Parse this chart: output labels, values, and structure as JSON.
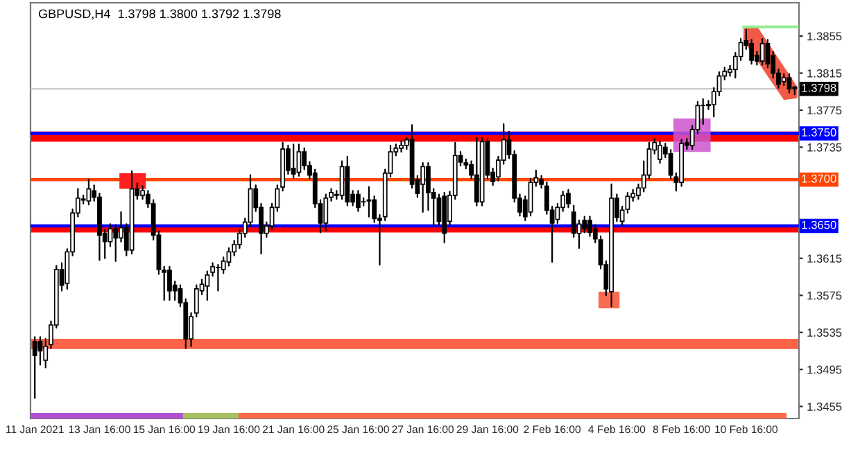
{
  "chart_data": {
    "type": "candlestick",
    "title": "GBPUSD,H4  1.3798 1.3800 1.3792 1.3798",
    "categories": [
      "11 Jan 2021",
      null,
      null,
      null,
      null,
      null,
      null,
      null,
      null,
      null,
      null,
      null,
      "13 Jan 16:00",
      null,
      null,
      null,
      null,
      null,
      null,
      null,
      null,
      null,
      null,
      null,
      "15 Jan 16:00",
      null,
      null,
      null,
      null,
      null,
      null,
      null,
      null,
      null,
      null,
      null,
      "19 Jan 16:00",
      null,
      null,
      null,
      null,
      null,
      null,
      null,
      null,
      null,
      null,
      null,
      "21 Jan 16:00",
      null,
      null,
      null,
      null,
      null,
      null,
      null,
      null,
      null,
      null,
      null,
      "25 Jan 16:00",
      null,
      null,
      null,
      null,
      null,
      null,
      null,
      null,
      null,
      null,
      null,
      "27 Jan 16:00",
      null,
      null,
      null,
      null,
      null,
      null,
      null,
      null,
      null,
      null,
      null,
      "29 Jan 16:00",
      null,
      null,
      null,
      null,
      null,
      null,
      null,
      null,
      null,
      null,
      null,
      "2 Feb 16:00",
      null,
      null,
      null,
      null,
      null,
      null,
      null,
      null,
      null,
      null,
      null,
      "4 Feb 16:00",
      null,
      null,
      null,
      null,
      null,
      null,
      null,
      null,
      null,
      null,
      null,
      "8 Feb 16:00",
      null,
      null,
      null,
      null,
      null,
      null,
      null,
      null,
      null,
      null,
      null,
      "10 Feb 16:00",
      null,
      null,
      null,
      null,
      null,
      null,
      null,
      null,
      null
    ],
    "ohlc": [
      [
        1.3525,
        1.353,
        1.3464,
        1.351
      ],
      [
        1.3525,
        1.353,
        1.35,
        1.3515
      ],
      [
        1.3505,
        1.3528,
        1.3497,
        1.352
      ],
      [
        1.3522,
        1.3547,
        1.3518,
        1.3543
      ],
      [
        1.3543,
        1.3607,
        1.354,
        1.3603
      ],
      [
        1.3603,
        1.361,
        1.358,
        1.3586
      ],
      [
        1.3588,
        1.3625,
        1.3582,
        1.3622
      ],
      [
        1.3622,
        1.3668,
        1.3618,
        1.3664
      ],
      [
        1.3664,
        1.369,
        1.366,
        1.368
      ],
      [
        1.3679,
        1.3683,
        1.3674,
        1.3678
      ],
      [
        1.3677,
        1.37,
        1.3673,
        1.369
      ],
      [
        1.3688,
        1.3694,
        1.3677,
        1.3681
      ],
      [
        1.3681,
        1.3685,
        1.3613,
        1.364
      ],
      [
        1.3642,
        1.3646,
        1.3615,
        1.3633
      ],
      [
        1.3633,
        1.3652,
        1.3628,
        1.3647
      ],
      [
        1.3647,
        1.3651,
        1.3612,
        1.3637
      ],
      [
        1.3637,
        1.3665,
        1.3633,
        1.3648
      ],
      [
        1.3648,
        1.3652,
        1.3618,
        1.3624
      ],
      [
        1.3624,
        1.3709,
        1.362,
        1.369
      ],
      [
        1.369,
        1.3696,
        1.3679,
        1.3683
      ],
      [
        1.3683,
        1.3693,
        1.3679,
        1.3688
      ],
      [
        1.3684,
        1.3688,
        1.367,
        1.3674
      ],
      [
        1.3674,
        1.3678,
        1.3635,
        1.364
      ],
      [
        1.364,
        1.3644,
        1.3598,
        1.3603
      ],
      [
        1.3602,
        1.3606,
        1.357,
        1.36
      ],
      [
        1.3602,
        1.3606,
        1.357,
        1.358
      ],
      [
        1.3586,
        1.359,
        1.357,
        1.358
      ],
      [
        1.3582,
        1.3586,
        1.3563,
        1.3567
      ],
      [
        1.3567,
        1.3571,
        1.3518,
        1.3528
      ],
      [
        1.3528,
        1.3556,
        1.352,
        1.3552
      ],
      [
        1.3556,
        1.3586,
        1.3552,
        1.3582
      ],
      [
        1.358,
        1.3592,
        1.3576,
        1.3587
      ],
      [
        1.3585,
        1.3601,
        1.357,
        1.3597
      ],
      [
        1.36,
        1.361,
        1.3596,
        1.3606
      ],
      [
        1.3605,
        1.3608,
        1.358,
        1.3605
      ],
      [
        1.3603,
        1.3616,
        1.3599,
        1.3612
      ],
      [
        1.3611,
        1.3626,
        1.3607,
        1.3622
      ],
      [
        1.3622,
        1.3634,
        1.3618,
        1.363
      ],
      [
        1.363,
        1.3646,
        1.3626,
        1.3642
      ],
      [
        1.3642,
        1.3658,
        1.3638,
        1.3654
      ],
      [
        1.3654,
        1.3705,
        1.365,
        1.369
      ],
      [
        1.369,
        1.3694,
        1.3666,
        1.367
      ],
      [
        1.367,
        1.3674,
        1.362,
        1.3642
      ],
      [
        1.3642,
        1.3654,
        1.3638,
        1.365
      ],
      [
        1.365,
        1.3674,
        1.3646,
        1.367
      ],
      [
        1.367,
        1.3694,
        1.3666,
        1.369
      ],
      [
        1.3692,
        1.374,
        1.3688,
        1.3733
      ],
      [
        1.3733,
        1.3737,
        1.3706,
        1.371
      ],
      [
        1.3712,
        1.3738,
        1.3702,
        1.3706
      ],
      [
        1.3708,
        1.3738,
        1.3704,
        1.373
      ],
      [
        1.373,
        1.3734,
        1.3711,
        1.3715
      ],
      [
        1.3715,
        1.3719,
        1.3701,
        1.3705
      ],
      [
        1.3707,
        1.3711,
        1.367,
        1.3674
      ],
      [
        1.3674,
        1.3678,
        1.3643,
        1.3653
      ],
      [
        1.3653,
        1.3684,
        1.3645,
        1.368
      ],
      [
        1.3681,
        1.369,
        1.3677,
        1.3686
      ],
      [
        1.3684,
        1.3688,
        1.3679,
        1.3683
      ],
      [
        1.3683,
        1.372,
        1.3679,
        1.3714
      ],
      [
        1.3714,
        1.3725,
        1.3672,
        1.3676
      ],
      [
        1.3684,
        1.3688,
        1.3672,
        1.3676
      ],
      [
        1.3684,
        1.3688,
        1.3666,
        1.367
      ],
      [
        1.3676,
        1.368,
        1.3672,
        1.3676
      ],
      [
        1.3677,
        1.3692,
        1.366,
        1.3678
      ],
      [
        1.3678,
        1.3682,
        1.3654,
        1.3658
      ],
      [
        1.3658,
        1.3662,
        1.3608,
        1.3656
      ],
      [
        1.366,
        1.3711,
        1.3656,
        1.3707
      ],
      [
        1.3707,
        1.3737,
        1.3703,
        1.373
      ],
      [
        1.373,
        1.3738,
        1.3726,
        1.3734
      ],
      [
        1.3734,
        1.3742,
        1.373,
        1.3737
      ],
      [
        1.3737,
        1.3745,
        1.3733,
        1.3743
      ],
      [
        1.3743,
        1.3759,
        1.3691,
        1.3695
      ],
      [
        1.37,
        1.3704,
        1.3681,
        1.3685
      ],
      [
        1.3695,
        1.3718,
        1.3665,
        1.3714
      ],
      [
        1.3714,
        1.3718,
        1.3667,
        1.3686
      ],
      [
        1.3686,
        1.369,
        1.365,
        1.368
      ],
      [
        1.368,
        1.3684,
        1.3651,
        1.3655
      ],
      [
        1.3682,
        1.3686,
        1.3632,
        1.3642
      ],
      [
        1.3655,
        1.3687,
        1.3651,
        1.3683
      ],
      [
        1.3683,
        1.374,
        1.3679,
        1.3726
      ],
      [
        1.3726,
        1.373,
        1.3715,
        1.3719
      ],
      [
        1.3718,
        1.3722,
        1.3712,
        1.3716
      ],
      [
        1.3716,
        1.372,
        1.3701,
        1.3705
      ],
      [
        1.3705,
        1.3745,
        1.3672,
        1.3676
      ],
      [
        1.3676,
        1.3745,
        1.3672,
        1.3741
      ],
      [
        1.3741,
        1.3744,
        1.3701,
        1.3705
      ],
      [
        1.3708,
        1.3712,
        1.3694,
        1.3698
      ],
      [
        1.3703,
        1.3725,
        1.3699,
        1.3721
      ],
      [
        1.3721,
        1.376,
        1.3717,
        1.3743
      ],
      [
        1.3743,
        1.3752,
        1.3723,
        1.3727
      ],
      [
        1.3727,
        1.3731,
        1.3676,
        1.368
      ],
      [
        1.368,
        1.3684,
        1.3661,
        1.3665
      ],
      [
        1.3678,
        1.3682,
        1.3656,
        1.366
      ],
      [
        1.3665,
        1.3701,
        1.3661,
        1.3697
      ],
      [
        1.3697,
        1.371,
        1.3693,
        1.3702
      ],
      [
        1.37,
        1.3704,
        1.3691,
        1.3695
      ],
      [
        1.3693,
        1.3697,
        1.3663,
        1.3667
      ],
      [
        1.3667,
        1.3671,
        1.3611,
        1.3653
      ],
      [
        1.3657,
        1.3674,
        1.3653,
        1.367
      ],
      [
        1.367,
        1.3687,
        1.3666,
        1.3683
      ],
      [
        1.3685,
        1.3689,
        1.367,
        1.3674
      ],
      [
        1.3665,
        1.3672,
        1.3638,
        1.3642
      ],
      [
        1.3642,
        1.3656,
        1.3626,
        1.3652
      ],
      [
        1.3656,
        1.366,
        1.3643,
        1.3647
      ],
      [
        1.3656,
        1.366,
        1.3639,
        1.3643
      ],
      [
        1.3647,
        1.3651,
        1.3632,
        1.3636
      ],
      [
        1.3635,
        1.3639,
        1.3604,
        1.3608
      ],
      [
        1.3608,
        1.3612,
        1.3575,
        1.3582
      ],
      [
        1.3579,
        1.3695,
        1.3563,
        1.368
      ],
      [
        1.368,
        1.3684,
        1.3655,
        1.3659
      ],
      [
        1.3655,
        1.3671,
        1.3651,
        1.3667
      ],
      [
        1.3668,
        1.3686,
        1.3664,
        1.3682
      ],
      [
        1.3681,
        1.3689,
        1.3677,
        1.3685
      ],
      [
        1.3683,
        1.3695,
        1.3679,
        1.3691
      ],
      [
        1.3691,
        1.372,
        1.3687,
        1.3705
      ],
      [
        1.3705,
        1.374,
        1.3701,
        1.3733
      ],
      [
        1.3732,
        1.3744,
        1.3728,
        1.374
      ],
      [
        1.3722,
        1.3741,
        1.3718,
        1.3737
      ],
      [
        1.3735,
        1.3739,
        1.3724,
        1.3728
      ],
      [
        1.3728,
        1.3732,
        1.3701,
        1.3705
      ],
      [
        1.3703,
        1.3707,
        1.3688,
        1.3697
      ],
      [
        1.3697,
        1.3743,
        1.3693,
        1.3739
      ],
      [
        1.374,
        1.3744,
        1.3733,
        1.3737
      ],
      [
        1.3737,
        1.3758,
        1.3733,
        1.3754
      ],
      [
        1.3754,
        1.3784,
        1.375,
        1.378
      ],
      [
        1.378,
        1.3787,
        1.376,
        1.378
      ],
      [
        1.378,
        1.3785,
        1.3776,
        1.3781
      ],
      [
        1.3781,
        1.3799,
        1.3768,
        1.3795
      ],
      [
        1.3795,
        1.3816,
        1.3791,
        1.3812
      ],
      [
        1.3812,
        1.3821,
        1.3808,
        1.3817
      ],
      [
        1.3816,
        1.3823,
        1.3812,
        1.3819
      ],
      [
        1.3819,
        1.3837,
        1.381,
        1.3833
      ],
      [
        1.3833,
        1.3852,
        1.3829,
        1.3848
      ],
      [
        1.385,
        1.3862,
        1.3841,
        1.3845
      ],
      [
        1.3847,
        1.3851,
        1.3825,
        1.3829
      ],
      [
        1.3834,
        1.3838,
        1.3824,
        1.3828
      ],
      [
        1.3828,
        1.3852,
        1.3824,
        1.3847
      ],
      [
        1.3847,
        1.3851,
        1.3821,
        1.3825
      ],
      [
        1.3834,
        1.3838,
        1.381,
        1.3815
      ],
      [
        1.3815,
        1.3819,
        1.3799,
        1.3803
      ],
      [
        1.3806,
        1.3814,
        1.3802,
        1.381
      ],
      [
        1.381,
        1.3814,
        1.3794,
        1.3798
      ],
      [
        1.38,
        1.38,
        1.3792,
        1.3798
      ]
    ],
    "ylim": [
      1.3442,
      1.3891
    ],
    "yticks": [
      1.3455,
      1.3495,
      1.3535,
      1.3575,
      1.3615,
      1.3735,
      1.3775,
      1.3815,
      1.3855
    ],
    "bands": [
      {
        "axis": "y",
        "from": 1.3741,
        "to": 1.3752,
        "color": "#ff0000"
      },
      {
        "axis": "y",
        "from": 1.3643,
        "to": 1.3651,
        "color": "#ff0000"
      },
      {
        "axis": "y",
        "from": 1.3517,
        "to": 1.3528,
        "color": "#ff6347"
      }
    ],
    "ref_lines": [
      {
        "axis": "y",
        "value": 1.375,
        "label": "1.3750",
        "color": "#0000ff",
        "line_style": "solid"
      },
      {
        "axis": "y",
        "value": 1.37,
        "label": "1.3700",
        "color": "#ff4500",
        "line_style": "solid"
      },
      {
        "axis": "y",
        "value": 1.365,
        "label": "1.3650",
        "color": "#0000ff",
        "line_style": "solid"
      },
      {
        "axis": "y",
        "value": 1.3798,
        "label": "1.3798",
        "color": "#c0c0c0",
        "line_style": "solid"
      }
    ],
    "grid": false
  }
}
